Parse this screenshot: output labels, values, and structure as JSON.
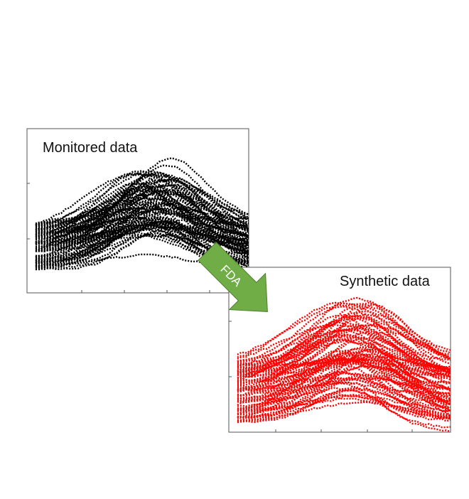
{
  "panels": [
    {
      "label": "Monitored data"
    },
    {
      "label": "Synthetic data"
    }
  ],
  "arrow": {
    "label": "FDA"
  }
}
